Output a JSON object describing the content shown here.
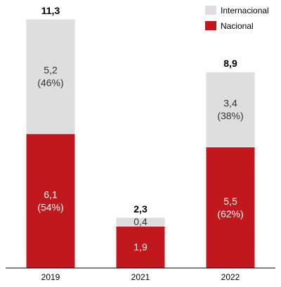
{
  "chart_data": {
    "type": "bar",
    "stacked": true,
    "categories": [
      "2019",
      "2021",
      "2022"
    ],
    "series": [
      {
        "name": "Nacional",
        "color": "#c0181c",
        "values": [
          6.1,
          1.9,
          5.5
        ],
        "labels": [
          "6,1",
          "1,9",
          "5,5"
        ],
        "percent_labels": [
          "(54%)",
          "",
          "(62%)"
        ]
      },
      {
        "name": "Internacional",
        "color": "#dedede",
        "values": [
          5.2,
          0.4,
          3.4
        ],
        "labels": [
          "5,2",
          "0,4",
          "3,4"
        ],
        "percent_labels": [
          "(46%)",
          "",
          "(38%)"
        ]
      }
    ],
    "totals": [
      11.3,
      2.3,
      8.9
    ],
    "total_labels": [
      "11,3",
      "2,3",
      "8,9"
    ],
    "legend": {
      "position": "top-right",
      "items": [
        {
          "label": "Internacional",
          "color": "#dedede"
        },
        {
          "label": "Nacional",
          "color": "#c0181c"
        }
      ]
    },
    "ylim": [
      0,
      11.3
    ],
    "grid": false,
    "title": "",
    "xlabel": "",
    "ylabel": ""
  }
}
